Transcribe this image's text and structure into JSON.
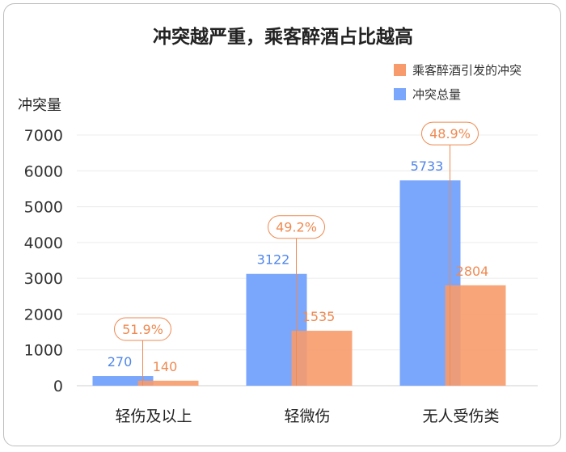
{
  "title": "冲突越严重，乘客醉酒占比越高",
  "colors": {
    "total": "#7aa6fb",
    "drunk": "#f79b6c",
    "pct_text": "#ef8a52",
    "total_text": "#4f86ea"
  },
  "chart_data": {
    "type": "bar",
    "title": "冲突越严重，乘客醉酒占比越高",
    "xlabel": "",
    "ylabel": "冲突量",
    "ylim": [
      0,
      7000
    ],
    "yticks": [
      0,
      1000,
      2000,
      3000,
      4000,
      5000,
      6000,
      7000
    ],
    "grid": true,
    "legend_position": "top-right",
    "categories": [
      "轻伤及以上",
      "轻微伤",
      "无人受伤类"
    ],
    "series": [
      {
        "name": "冲突总量",
        "values": [
          270,
          3122,
          5733
        ]
      },
      {
        "name": "乘客醉酒引发的冲突",
        "values": [
          140,
          1535,
          2804
        ]
      }
    ],
    "annotations": [
      "51.9%",
      "49.2%",
      "48.9%"
    ]
  }
}
